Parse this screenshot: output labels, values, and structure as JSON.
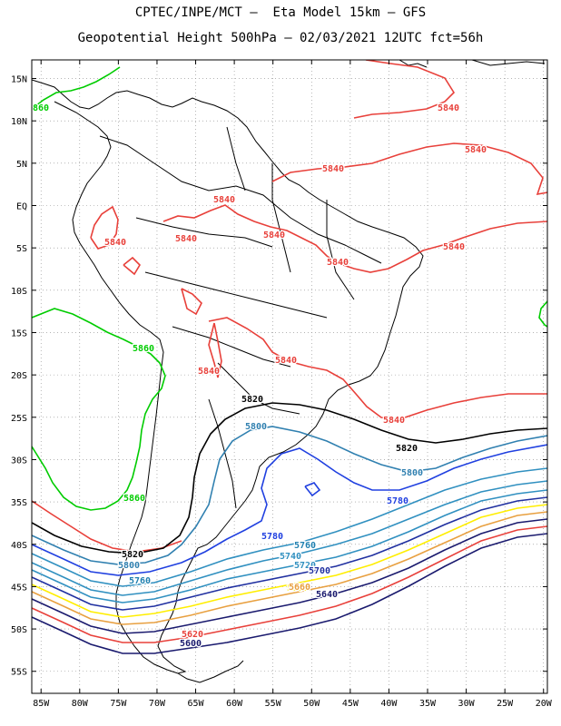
{
  "header": {
    "line1": "CPTEC/INPE/MCT –  Eta Model 15km – GFS",
    "line2": "Geopotential Height 500hPa – 02/03/2021 12UTC fct=56h"
  },
  "axes": {
    "lat_labels": [
      "15N",
      "10N",
      "5N",
      "EQ",
      "5S",
      "10S",
      "15S",
      "20S",
      "25S",
      "30S",
      "35S",
      "40S",
      "45S",
      "50S",
      "55S"
    ],
    "lat_values": [
      15,
      10,
      5,
      0,
      -5,
      -10,
      -15,
      -20,
      -25,
      -30,
      -35,
      -40,
      -45,
      -50,
      -55
    ],
    "lon_labels": [
      "85W",
      "80W",
      "75W",
      "70W",
      "65W",
      "60W",
      "55W",
      "50W",
      "45W",
      "40W",
      "35W",
      "30W",
      "25W",
      "20W"
    ],
    "lon_values": [
      -85,
      -80,
      -75,
      -70,
      -65,
      -60,
      -55,
      -50,
      -45,
      -40,
      -35,
      -30,
      -25,
      -20
    ],
    "grid": true
  },
  "contour_colors": {
    "5600": "#1a1a6e",
    "5620": "#e8403a",
    "5640": "#1a1a6e",
    "5660": "#e8a040",
    "5680": "#ffee00",
    "5700": "#2030a0",
    "5720": "#3090c0",
    "5740": "#3090c0",
    "5760": "#2080b0",
    "5780": "#2040e0",
    "5800": "#3080b0",
    "5820": "#000000",
    "5840": "#e8403a",
    "5860": "#00cc00"
  },
  "contour_labels": [
    {
      "text": "5840",
      "level": "5840"
    },
    {
      "text": "5840",
      "level": "5840"
    },
    {
      "text": "5840",
      "level": "5840"
    },
    {
      "text": "5840",
      "level": "5840"
    },
    {
      "text": "5840",
      "level": "5840"
    },
    {
      "text": "5840",
      "level": "5840"
    },
    {
      "text": "5840",
      "level": "5840"
    },
    {
      "text": "5840",
      "level": "5840"
    },
    {
      "text": "5840",
      "level": "5840"
    },
    {
      "text": "5840",
      "level": "5840"
    },
    {
      "text": "5840",
      "level": "5840"
    },
    {
      "text": "5840",
      "level": "5840"
    },
    {
      "text": "860",
      "level": "5860"
    },
    {
      "text": "5860",
      "level": "5860"
    },
    {
      "text": "5860",
      "level": "5860"
    },
    {
      "text": "5820",
      "level": "5820"
    },
    {
      "text": "5820",
      "level": "5820"
    },
    {
      "text": "5820",
      "level": "5820"
    },
    {
      "text": "5800",
      "level": "5800"
    },
    {
      "text": "5800",
      "level": "5800"
    },
    {
      "text": "5800",
      "level": "5800"
    },
    {
      "text": "5780",
      "level": "5780"
    },
    {
      "text": "5780",
      "level": "5780"
    },
    {
      "text": "5760",
      "level": "5760"
    },
    {
      "text": "5760",
      "level": "5760"
    },
    {
      "text": "5740",
      "level": "5740"
    },
    {
      "text": "5720",
      "level": "5720"
    },
    {
      "text": "5700",
      "level": "5700"
    },
    {
      "text": "5680",
      "level": "5680"
    },
    {
      "text": "5660",
      "level": "5660"
    },
    {
      "text": "5640",
      "level": "5640"
    },
    {
      "text": "5620",
      "level": "5620"
    },
    {
      "text": "5600",
      "level": "5600"
    }
  ]
}
